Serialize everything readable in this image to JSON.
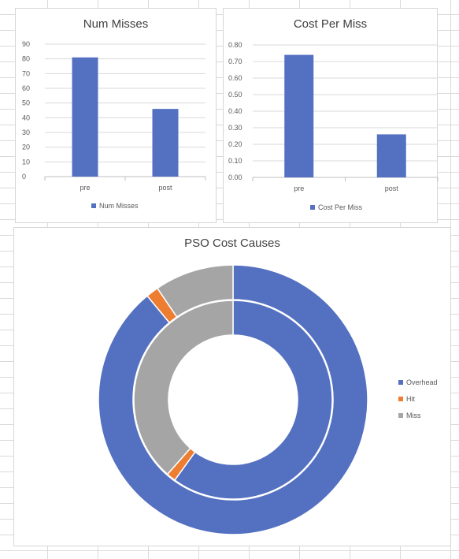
{
  "chart_data": [
    {
      "type": "bar",
      "title": "Num Misses",
      "categories": [
        "pre",
        "post"
      ],
      "series": [
        {
          "name": "Num Misses",
          "values": [
            81,
            46
          ]
        }
      ],
      "ylim": [
        0,
        90
      ],
      "yticks": [
        "0",
        "10",
        "20",
        "30",
        "40",
        "50",
        "60",
        "70",
        "80",
        "90"
      ],
      "grid": true,
      "legend": "bottom",
      "color": "#5470c0"
    },
    {
      "type": "bar",
      "title": "Cost Per Miss",
      "categories": [
        "pre",
        "post"
      ],
      "series": [
        {
          "name": "Cost Per Miss",
          "values": [
            0.74,
            0.26
          ]
        }
      ],
      "ylim": [
        0,
        0.8
      ],
      "yticks": [
        "0.00",
        "0.10",
        "0.20",
        "0.30",
        "0.40",
        "0.50",
        "0.60",
        "0.70",
        "0.80"
      ],
      "grid": true,
      "legend": "bottom",
      "color": "#5470c0"
    },
    {
      "type": "pie",
      "subtype": "doughnut",
      "title": "PSO Cost Causes",
      "categories": [
        "Overhead",
        "Hit",
        "Miss"
      ],
      "colors": [
        "#5470c0",
        "#ed7d31",
        "#a5a5a5"
      ],
      "series": [
        {
          "ring": "outer",
          "values": [
            89,
            1.5,
            9.5
          ]
        },
        {
          "ring": "inner",
          "values": [
            60,
            1.5,
            38.5
          ]
        }
      ],
      "legend": "right"
    }
  ]
}
